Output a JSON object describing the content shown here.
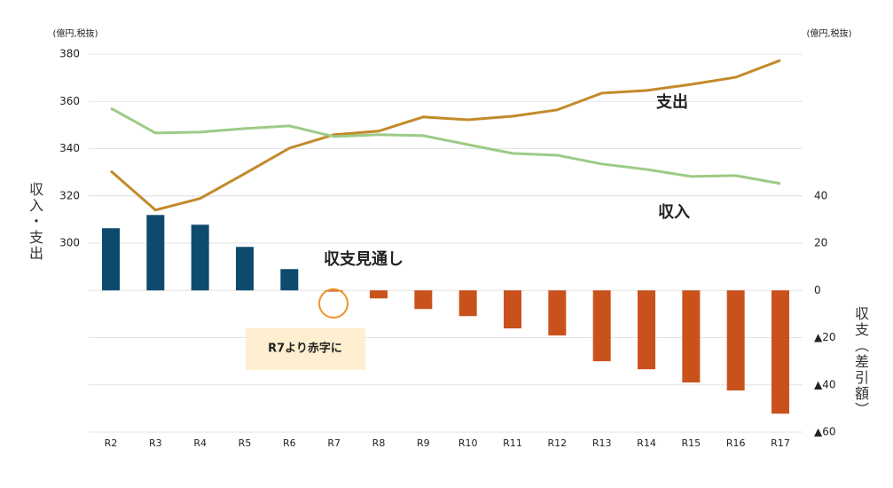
{
  "chart_data": {
    "type": "combo",
    "y_unit_left": "(億円,税抜)",
    "y_unit_right": "(億円,税抜)",
    "ylabel": "収入・支出",
    "y2label": "収支（差引額）",
    "categories": [
      "R2",
      "R3",
      "R4",
      "R5",
      "R6",
      "R7",
      "R8",
      "R9",
      "R10",
      "R11",
      "R12",
      "R13",
      "R14",
      "R15",
      "R16",
      "R17"
    ],
    "ylim": [
      220,
      380
    ],
    "yticks": [
      300,
      320,
      340,
      360,
      380
    ],
    "y2lim": [
      -60,
      100
    ],
    "y2ticks": [
      {
        "value": -60,
        "label": "▲60"
      },
      {
        "value": -40,
        "label": "▲40"
      },
      {
        "value": -20,
        "label": "▲20"
      },
      0,
      20,
      40
    ],
    "grid": true,
    "series": [
      {
        "name": "収支見通し",
        "type": "bar",
        "axis": "y2",
        "color": "#0e4a6e",
        "negative_color": "#c9521c",
        "values": [
          26.3,
          31.9,
          27.8,
          18.4,
          9,
          -0.5,
          -3.4,
          -7.9,
          -10.9,
          -16.1,
          -19.1,
          -30,
          -33.4,
          -39,
          -42.4,
          -52.2
        ]
      },
      {
        "name": "支出",
        "type": "line",
        "color": "#c28a2a",
        "values": [
          330.5,
          314,
          318.9,
          329.4,
          340.2,
          345.9,
          347.4,
          353.4,
          352.2,
          353.7,
          356.4,
          363.5,
          364.6,
          367.2,
          370.2,
          377.4
        ]
      },
      {
        "name": "収入",
        "type": "line",
        "color": "#9ccb86",
        "values": [
          357.1,
          346.6,
          347,
          348.5,
          349.6,
          345.1,
          345.9,
          345.5,
          341.7,
          338,
          337.2,
          333.5,
          331.2,
          328.2,
          328.6,
          325.2
        ]
      }
    ],
    "annotation": "R7より赤字に"
  }
}
